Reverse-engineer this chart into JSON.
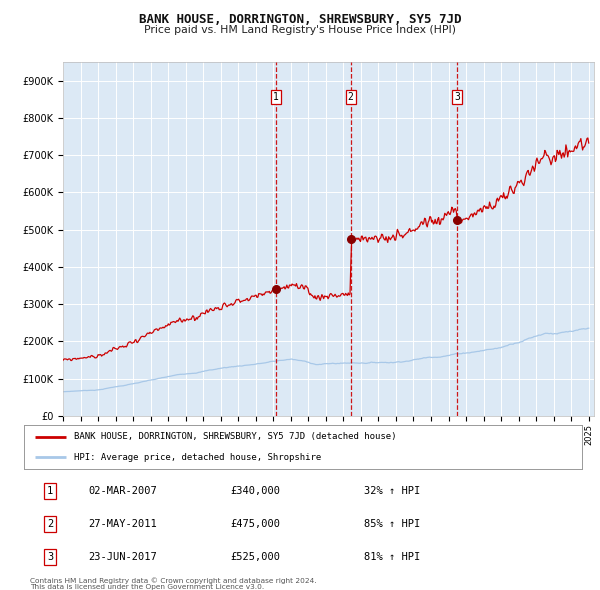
{
  "title": "BANK HOUSE, DORRINGTON, SHREWSBURY, SY5 7JD",
  "subtitle": "Price paid vs. HM Land Registry's House Price Index (HPI)",
  "background_color": "#ffffff",
  "plot_bg_color": "#dce9f5",
  "grid_color": "#ffffff",
  "ylim": [
    0,
    950000
  ],
  "yticks": [
    0,
    100000,
    200000,
    300000,
    400000,
    500000,
    600000,
    700000,
    800000,
    900000
  ],
  "ytick_labels": [
    "£0",
    "£100K",
    "£200K",
    "£300K",
    "£400K",
    "£500K",
    "£600K",
    "£700K",
    "£800K",
    "£900K"
  ],
  "sale_dates_num": [
    2007.17,
    2011.41,
    2017.48
  ],
  "sale_prices": [
    340000,
    475000,
    525000
  ],
  "sale_labels": [
    "1",
    "2",
    "3"
  ],
  "legend_line1": "BANK HOUSE, DORRINGTON, SHREWSBURY, SY5 7JD (detached house)",
  "legend_line2": "HPI: Average price, detached house, Shropshire",
  "table_entries": [
    [
      "1",
      "02-MAR-2007",
      "£340,000",
      "32% ↑ HPI"
    ],
    [
      "2",
      "27-MAY-2011",
      "£475,000",
      "85% ↑ HPI"
    ],
    [
      "3",
      "23-JUN-2017",
      "£525,000",
      "81% ↑ HPI"
    ]
  ],
  "footnote1": "Contains HM Land Registry data © Crown copyright and database right 2024.",
  "footnote2": "This data is licensed under the Open Government Licence v3.0.",
  "hpi_line_color": "#a8c8e8",
  "price_line_color": "#cc0000",
  "vline_color": "#cc0000",
  "marker_color": "#880000"
}
